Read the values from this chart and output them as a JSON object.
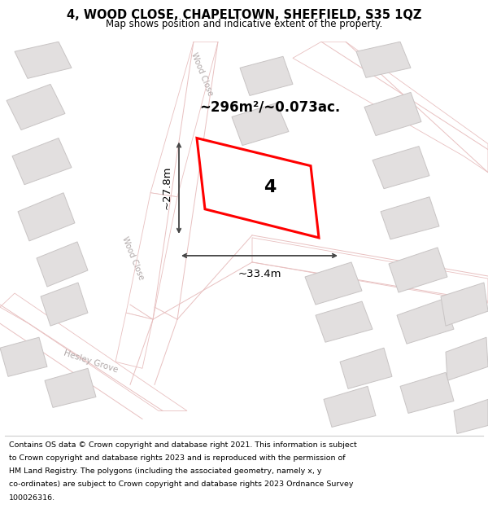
{
  "title": "4, WOOD CLOSE, CHAPELTOWN, SHEFFIELD, S35 1QZ",
  "subtitle": "Map shows position and indicative extent of the property.",
  "area_text": "~296m²/~0.073ac.",
  "width_text": "~33.4m",
  "height_text": "~27.8m",
  "property_number": "4",
  "map_bg": "#f2efef",
  "building_fill": "#e2dfdf",
  "building_stroke": "#c8c4c4",
  "property_fill": "#ffffff",
  "property_stroke": "#ff0000",
  "dim_color": "#444444",
  "street_label_color": "#b0a8a8",
  "footer_lines": [
    "Contains OS data © Crown copyright and database right 2021. This information is subject",
    "to Crown copyright and database rights 2023 and is reproduced with the permission of",
    "HM Land Registry. The polygons (including the associated geometry, namely x, y",
    "co-ordinates) are subject to Crown copyright and database rights 2023 Ordnance Survey",
    "100026316."
  ]
}
